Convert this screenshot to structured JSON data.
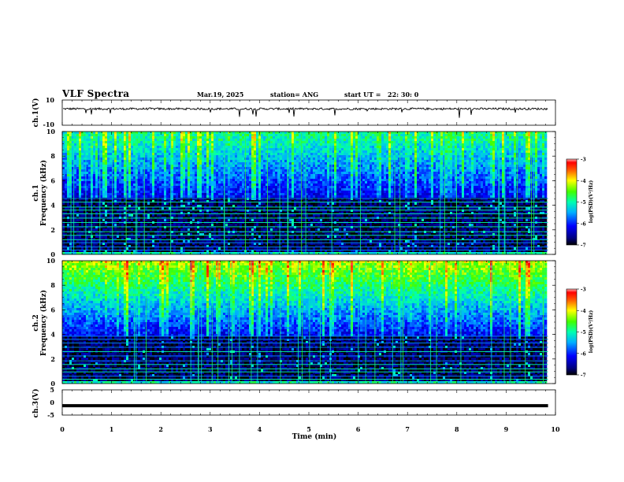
{
  "header": {
    "title": "VLF Spectra",
    "date": "Mar.19, 2025",
    "station": "station= ANG",
    "start_label": "start UT =",
    "start_time": "22: 30: 0"
  },
  "chart_data": [
    {
      "type": "line",
      "name": "ch1-waveform",
      "ylabel": "ch.1(V)",
      "ylim": [
        -10,
        10
      ],
      "yticks": [
        "10",
        "-10"
      ],
      "xlim": [
        0,
        10
      ],
      "trace": "noisy near-constant signal around +3 V with sparse downward spikes",
      "baseline_v": 3
    },
    {
      "type": "heatmap",
      "name": "ch1-spectrogram",
      "ylabel_top": "ch.1",
      "ylabel": "Frequency (kHz)",
      "xlim": [
        0,
        10
      ],
      "ylim": [
        0,
        10
      ],
      "yticks": [
        "0",
        "2",
        "4",
        "6",
        "8",
        "10"
      ],
      "colorbar": {
        "label": "log(PSD)(V²/Hz)",
        "range": [
          -7,
          -3
        ],
        "ticks": [
          "-3",
          "-4",
          "-5",
          "-6",
          "-7"
        ]
      },
      "data_end_min": 9.85,
      "quiet_band_khz": [
        0,
        4.6
      ],
      "active_band_khz": [
        4.6,
        10
      ],
      "intensity_above_band": -5.0
    },
    {
      "type": "heatmap",
      "name": "ch2-spectrogram",
      "ylabel_top": "ch.2",
      "ylabel": "Frequency (kHz)",
      "xlim": [
        0,
        10
      ],
      "ylim": [
        0,
        10
      ],
      "yticks": [
        "0",
        "2",
        "4",
        "6",
        "8",
        "10"
      ],
      "colorbar": {
        "label": "log(PSD)(V²/Hz)",
        "range": [
          -7,
          -3
        ],
        "ticks": [
          "-3",
          "-4",
          "-5",
          "-6",
          "-7"
        ]
      },
      "data_end_min": 9.85,
      "quiet_band_khz": [
        0,
        3.8
      ],
      "active_band_khz": [
        3.8,
        10
      ],
      "intensity_above_band": -4.3
    },
    {
      "type": "line",
      "name": "ch3-waveform",
      "ylabel": "ch.3(V)",
      "ylim": [
        -5,
        5
      ],
      "yticks": [
        "5",
        "0",
        "-5"
      ],
      "xlim": [
        0,
        10
      ],
      "trace": "flat thick line",
      "baseline_v": -1.3
    }
  ],
  "xaxis": {
    "label": "Time (min)",
    "ticks": [
      "0",
      "1",
      "2",
      "3",
      "4",
      "5",
      "6",
      "7",
      "8",
      "9",
      "10"
    ]
  }
}
